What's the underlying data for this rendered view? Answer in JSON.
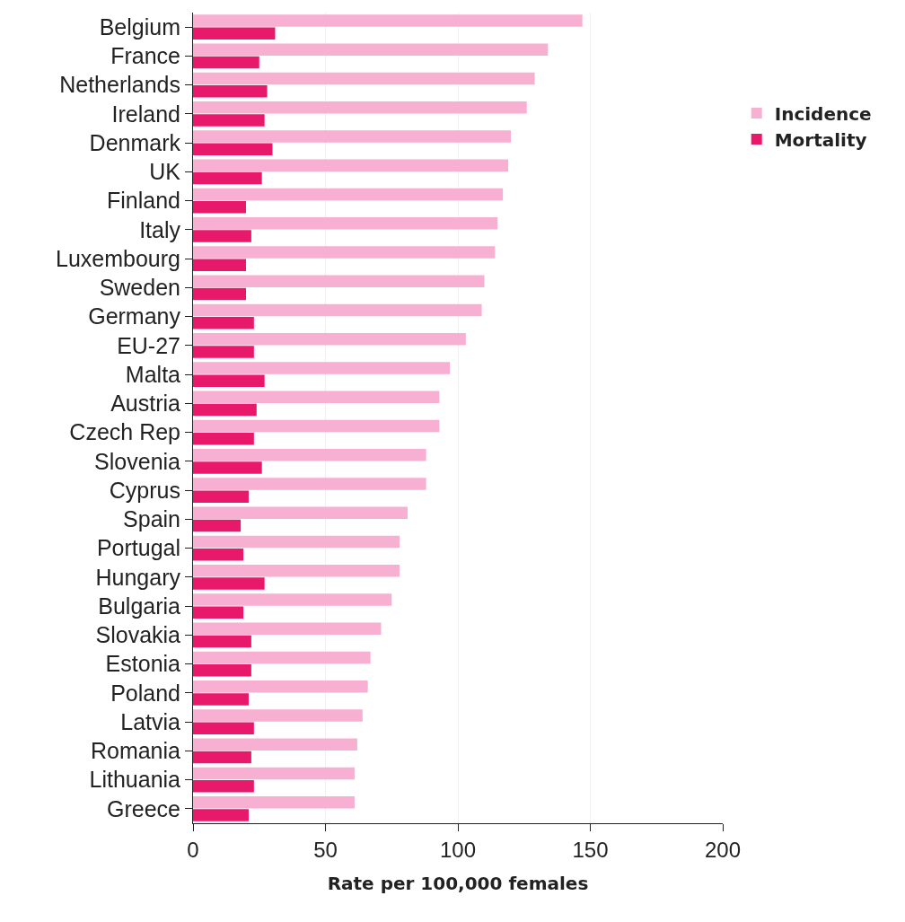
{
  "chart_data": {
    "type": "bar",
    "orientation": "horizontal",
    "xlabel": "Rate per 100,000 females",
    "categories": [
      "Belgium",
      "France",
      "Netherlands",
      "Ireland",
      "Denmark",
      "UK",
      "Finland",
      "Italy",
      "Luxembourg",
      "Sweden",
      "Germany",
      "EU-27",
      "Malta",
      "Austria",
      "Czech Rep",
      "Slovenia",
      "Cyprus",
      "Spain",
      "Portugal",
      "Hungary",
      "Bulgaria",
      "Slovakia",
      "Estonia",
      "Poland",
      "Latvia",
      "Romania",
      "Lithuania",
      "Greece"
    ],
    "series": [
      {
        "name": "Incidence",
        "color": "#f7afd2",
        "values": [
          147,
          134,
          129,
          126,
          120,
          119,
          117,
          115,
          114,
          110,
          109,
          103,
          97,
          93,
          93,
          88,
          88,
          81,
          78,
          78,
          75,
          71,
          67,
          66,
          64,
          62,
          61,
          61
        ]
      },
      {
        "name": "Mortality",
        "color": "#e8196a",
        "values": [
          31,
          25,
          28,
          27,
          30,
          26,
          20,
          22,
          20,
          20,
          23,
          23,
          27,
          24,
          23,
          26,
          21,
          18,
          19,
          27,
          19,
          22,
          22,
          21,
          23,
          22,
          23,
          21
        ]
      }
    ],
    "xlim": [
      0,
      200
    ],
    "xticks": [
      0,
      50,
      100,
      150,
      200
    ],
    "grid": "x",
    "legend": "right"
  }
}
